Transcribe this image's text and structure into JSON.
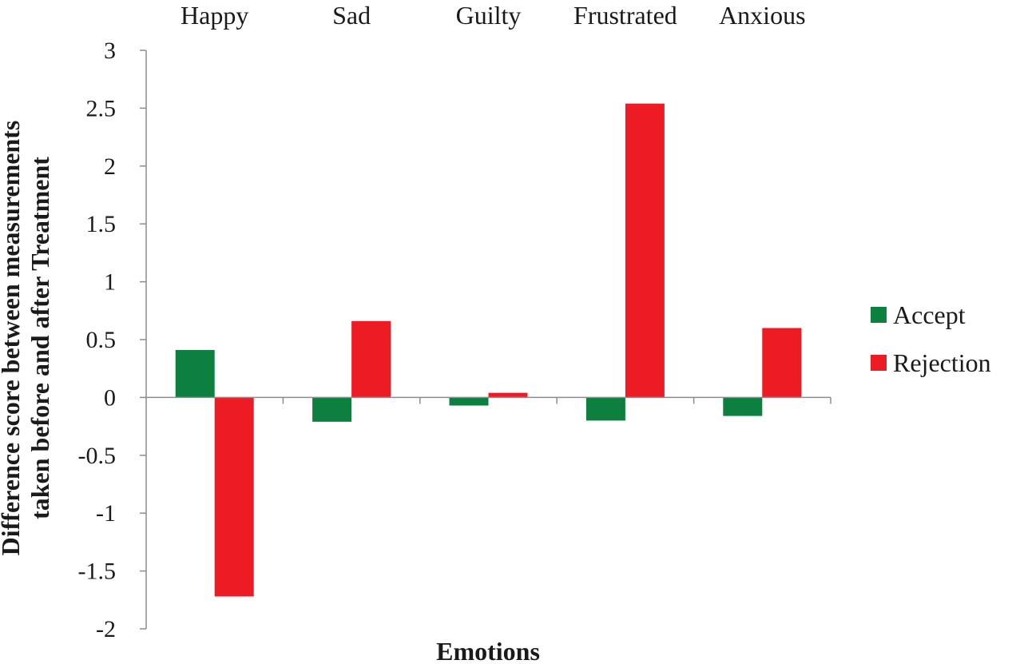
{
  "chart_data": {
    "type": "bar",
    "title": "",
    "xlabel": "Emotions",
    "ylabel_lines": [
      "Difference score between measurements",
      "taken before and after Treatment"
    ],
    "categories": [
      "Happy",
      "Sad",
      "Guilty",
      "Frustrated",
      "Anxious"
    ],
    "category_labels_position": "top",
    "series": [
      {
        "name": "Accept",
        "color": "#0d8040",
        "values": [
          0.41,
          -0.21,
          -0.07,
          -0.2,
          -0.16
        ]
      },
      {
        "name": "Rejection",
        "color": "#ed1c24",
        "values": [
          -1.72,
          0.66,
          0.04,
          2.54,
          0.6
        ]
      }
    ],
    "ylim": [
      -2,
      3
    ],
    "yticks": [
      3,
      2.5,
      2,
      1.5,
      1,
      0.5,
      0,
      -0.5,
      -1,
      -1.5,
      -2
    ],
    "ytick_labels": [
      "3",
      "2.5",
      "2",
      "1.5",
      "1",
      "0.5",
      "0",
      "-0.5",
      "-1",
      "-1.5",
      "-2"
    ],
    "grid": false,
    "legend_position": "right"
  }
}
